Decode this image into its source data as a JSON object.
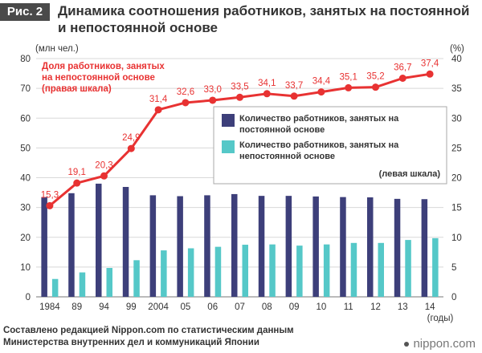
{
  "figure_tag": "Рис. 2",
  "title": "Динамика соотношения работников, занятых на постоянной и непостоянной основе",
  "footer": {
    "line1": "Составлено редакцией Nippon.com по статистическим данным",
    "line2": "Министерства внутренних дел и коммуникаций Японии"
  },
  "brand": "nippon.com",
  "chart_data": {
    "type": "bar",
    "categories": [
      "1984",
      "89",
      "94",
      "99",
      "2004",
      "05",
      "06",
      "07",
      "08",
      "09",
      "10",
      "11",
      "12",
      "13",
      "14"
    ],
    "xlabel": "(годы)",
    "ylabel_left": "(млн чел.)",
    "ylabel_right": "(%)",
    "ylim_left": [
      0,
      80
    ],
    "ylim_right": [
      0,
      40
    ],
    "yticks_left": [
      0,
      10,
      20,
      30,
      40,
      50,
      60,
      70,
      80
    ],
    "yticks_right": [
      0,
      5,
      10,
      15,
      20,
      25,
      30,
      35,
      40
    ],
    "series": [
      {
        "name": "Количество работников, занятых на постоянной основе",
        "type": "bar",
        "axis": "left",
        "color": "#3d3f7a",
        "values": [
          33.5,
          34.8,
          38.0,
          36.9,
          34.1,
          33.8,
          34.1,
          34.5,
          33.9,
          33.9,
          33.7,
          33.5,
          33.4,
          32.9,
          32.8
        ]
      },
      {
        "name": "Количество работников, занятых на непостоянной основе",
        "type": "bar",
        "axis": "left",
        "color": "#55c8c8",
        "values": [
          6.0,
          8.2,
          9.7,
          12.3,
          15.6,
          16.3,
          16.8,
          17.5,
          17.6,
          17.2,
          17.6,
          18.1,
          18.1,
          19.1,
          19.7
        ]
      },
      {
        "name": "Доля работников, занятых на непостоянной основе (правая шкала)",
        "type": "line",
        "axis": "right",
        "color": "#e83232",
        "values": [
          15.3,
          19.1,
          20.3,
          24.9,
          31.4,
          32.6,
          33.0,
          33.5,
          34.1,
          33.7,
          34.4,
          35.1,
          35.2,
          36.7,
          37.4
        ],
        "labels": [
          "15,3",
          "19,1",
          "20,3",
          "24,9",
          "31,4",
          "32,6",
          "33,0",
          "33,5",
          "34,1",
          "33,7",
          "34,4",
          "35,1",
          "35,2",
          "36,7",
          "37,4"
        ]
      }
    ],
    "line_legend": [
      "Доля работников, занятых",
      "на непостоянной основе",
      "(правая шкала)"
    ],
    "bar_legend": {
      "regular": [
        "Количество работников, занятых на",
        "постоянной основе"
      ],
      "irregular": [
        "Количество работников, занятых на",
        "непостоянной основе"
      ],
      "note": "(левая шкала)"
    },
    "grid": true,
    "legend_position": "right"
  }
}
